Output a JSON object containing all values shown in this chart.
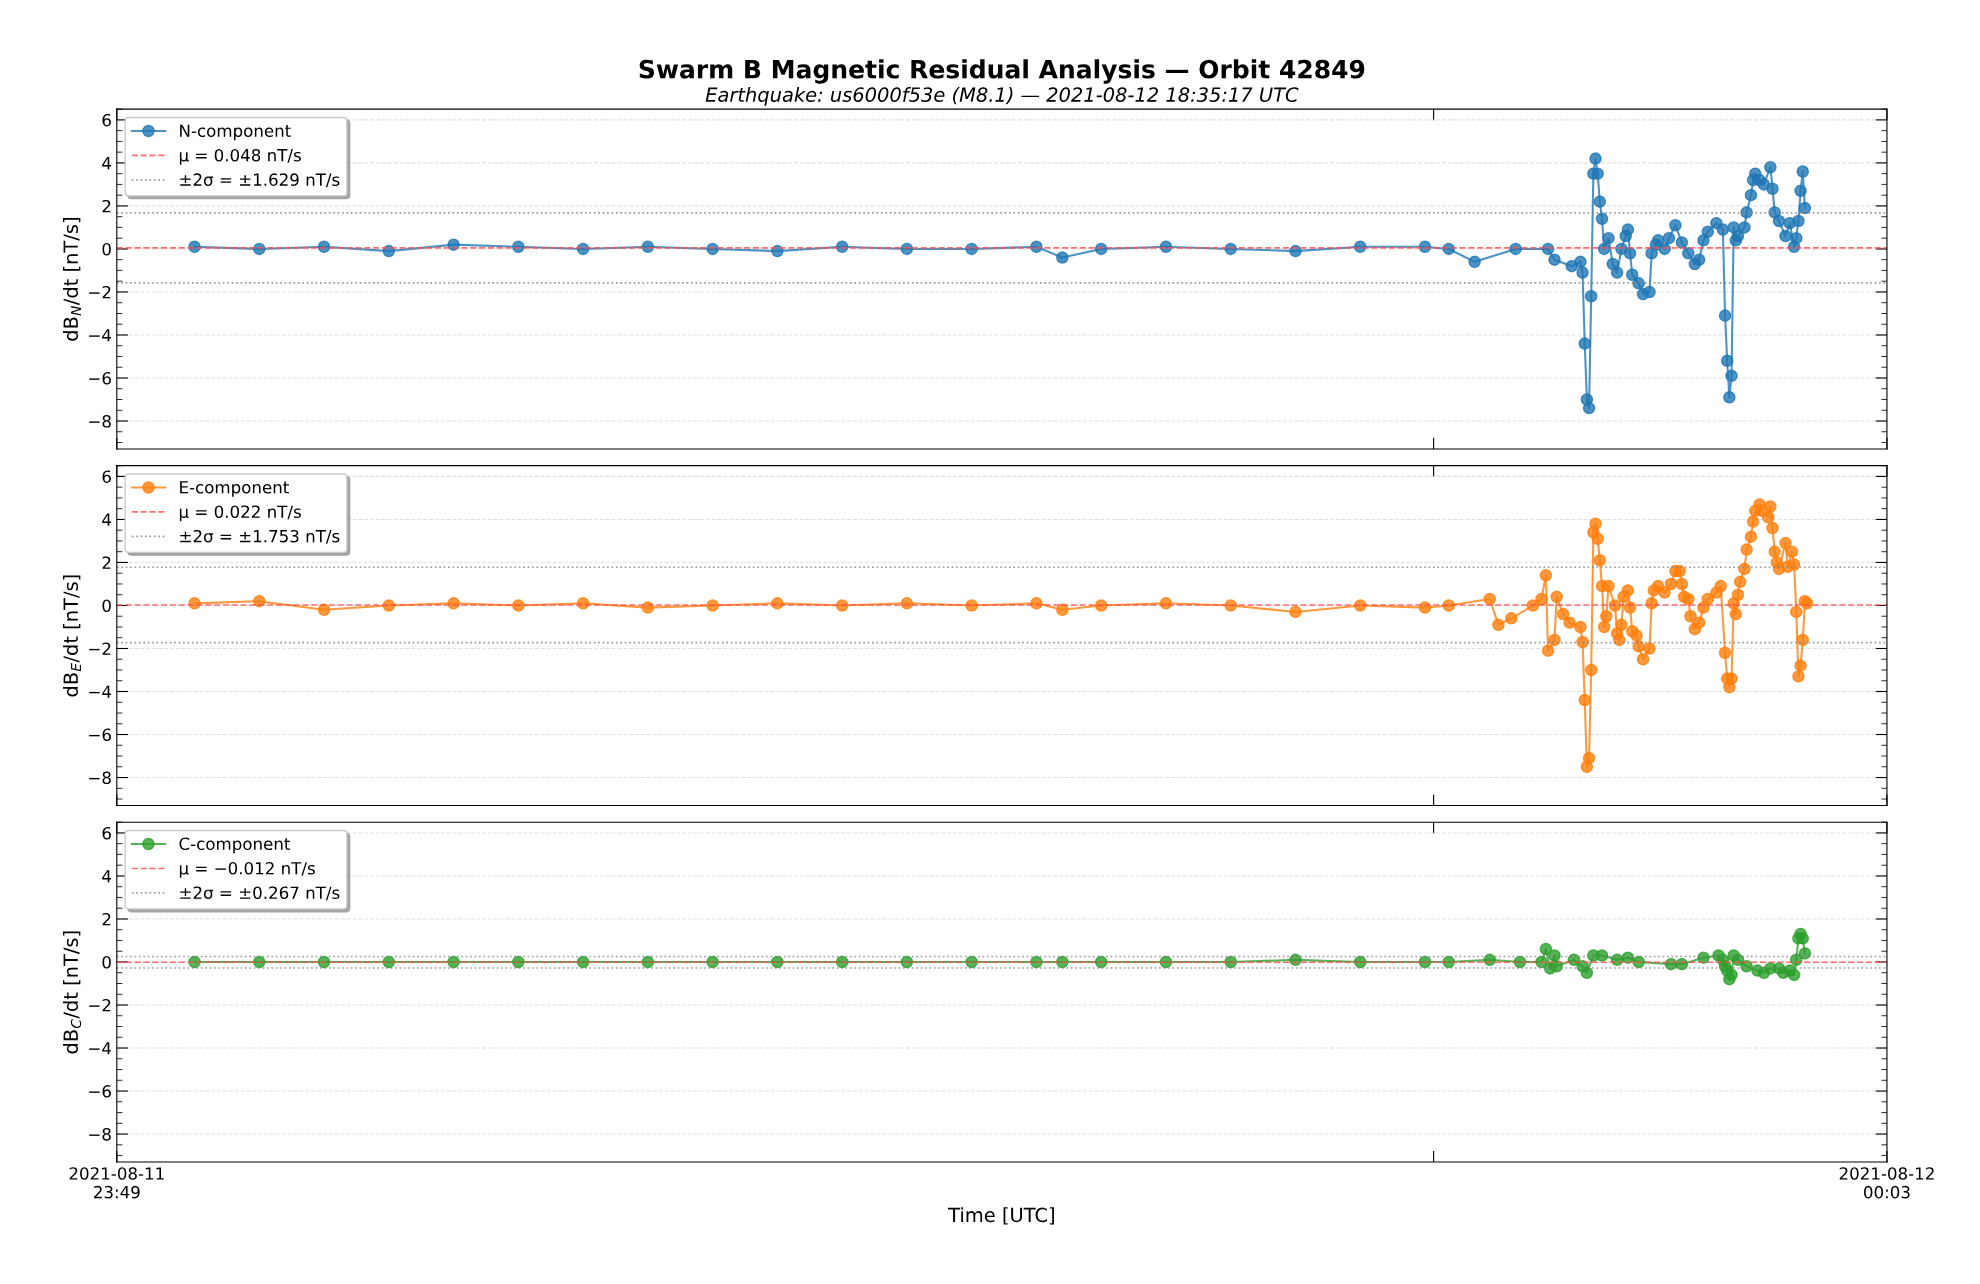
{
  "chart_data": [
    {
      "type": "line",
      "title": "Swarm B Magnetic Residual Analysis — Orbit 42849",
      "subtitle": "Earthquake: us6000f53e (M8.1) — 2021-08-12 18:35:17 UTC",
      "ylabel": "dB$_{N}$/dt [nT/s]",
      "xlim": [
        "2021-08-11T23:49:50",
        "2021-08-12T00:03:30"
      ],
      "xticks": [
        {
          "value": "2021-08-11T23:49:50",
          "label": null
        },
        {
          "value": "2021-08-12T00:00:00",
          "label": null
        },
        {
          "value": "2021-08-12T00:03:30",
          "label": null
        }
      ],
      "ylim": [
        -9.3,
        6.5
      ],
      "yticks": [
        -8,
        -6,
        -4,
        -2,
        0,
        2,
        4,
        6
      ],
      "grid": "y",
      "legend": "top left",
      "marker": "circle",
      "line_style": "solid",
      "tick_labels": "y",
      "ref_lines": [
        {
          "axis": "y",
          "value": 0.048,
          "label": "μ = 0.048 nT/s",
          "color": "#ff4d4d",
          "line_style": "dashed"
        },
        {
          "axis": "y",
          "value": 1.677,
          "label": "±2σ = ±1.629 nT/s",
          "color": "#808080",
          "line_style": "dotted"
        },
        {
          "axis": "y",
          "value": -1.581,
          "color": "#808080",
          "line_style": "dotted"
        }
      ],
      "series": [
        {
          "name": "N-component",
          "color": "#1f77b4",
          "x": [
            "2021-08-11T23:50:26",
            "2021-08-11T23:50:56",
            "2021-08-11T23:51:26",
            "2021-08-11T23:51:56",
            "2021-08-11T23:52:26",
            "2021-08-11T23:52:56",
            "2021-08-11T23:53:26",
            "2021-08-11T23:53:56",
            "2021-08-11T23:54:26",
            "2021-08-11T23:54:56",
            "2021-08-11T23:55:26",
            "2021-08-11T23:55:56",
            "2021-08-11T23:56:26",
            "2021-08-11T23:56:56",
            "2021-08-11T23:57:08",
            "2021-08-11T23:57:26",
            "2021-08-11T23:57:56",
            "2021-08-11T23:58:26",
            "2021-08-11T23:58:56",
            "2021-08-11T23:59:26",
            "2021-08-11T23:59:56",
            "2021-08-12T00:00:07",
            "2021-08-12T00:00:19",
            "2021-08-12T00:00:38",
            "2021-08-12T00:00:53",
            "2021-08-12T00:00:56",
            "2021-08-12T00:01:04",
            "2021-08-12T00:01:08",
            "2021-08-12T00:01:09",
            "2021-08-12T00:01:10",
            "2021-08-12T00:01:11",
            "2021-08-12T00:01:12",
            "2021-08-12T00:01:13",
            "2021-08-12T00:01:14",
            "2021-08-12T00:01:15",
            "2021-08-12T00:01:16",
            "2021-08-12T00:01:17",
            "2021-08-12T00:01:18",
            "2021-08-12T00:01:19",
            "2021-08-12T00:01:21",
            "2021-08-12T00:01:23",
            "2021-08-12T00:01:25",
            "2021-08-12T00:01:27",
            "2021-08-12T00:01:29",
            "2021-08-12T00:01:30",
            "2021-08-12T00:01:31",
            "2021-08-12T00:01:32",
            "2021-08-12T00:01:35",
            "2021-08-12T00:01:37",
            "2021-08-12T00:01:40",
            "2021-08-12T00:01:41",
            "2021-08-12T00:01:43",
            "2021-08-12T00:01:44",
            "2021-08-12T00:01:47",
            "2021-08-12T00:01:49",
            "2021-08-12T00:01:52",
            "2021-08-12T00:01:55",
            "2021-08-12T00:01:58",
            "2021-08-12T00:02:01",
            "2021-08-12T00:02:03",
            "2021-08-12T00:02:05",
            "2021-08-12T00:02:07",
            "2021-08-12T00:02:11",
            "2021-08-12T00:02:14",
            "2021-08-12T00:02:15",
            "2021-08-12T00:02:16",
            "2021-08-12T00:02:17",
            "2021-08-12T00:02:18",
            "2021-08-12T00:02:19",
            "2021-08-12T00:02:20",
            "2021-08-12T00:02:21",
            "2021-08-12T00:02:24",
            "2021-08-12T00:02:25",
            "2021-08-12T00:02:27",
            "2021-08-12T00:02:28",
            "2021-08-12T00:02:29",
            "2021-08-12T00:02:31",
            "2021-08-12T00:02:33",
            "2021-08-12T00:02:36",
            "2021-08-12T00:02:37",
            "2021-08-12T00:02:38",
            "2021-08-12T00:02:40",
            "2021-08-12T00:02:43",
            "2021-08-12T00:02:45",
            "2021-08-12T00:02:47",
            "2021-08-12T00:02:48",
            "2021-08-12T00:02:49",
            "2021-08-12T00:02:50",
            "2021-08-12T00:02:51",
            "2021-08-12T00:02:52"
          ],
          "values": [
            0.1,
            0,
            0.1,
            -0.1,
            0.2,
            0.1,
            0,
            0.1,
            0,
            -0.1,
            0.1,
            0,
            0,
            0.1,
            -0.4,
            0,
            0.1,
            0,
            -0.1,
            0.1,
            0.1,
            0,
            -0.6,
            0,
            0,
            -0.5,
            -0.8,
            -0.6,
            -1.1,
            -4.4,
            -7.0,
            -7.4,
            -2.2,
            3.5,
            4.2,
            3.5,
            2.2,
            1.4,
            0,
            0.5,
            -0.7,
            -1.1,
            0,
            0.6,
            0.9,
            -0.2,
            -1.2,
            -1.6,
            -2.1,
            -2.0,
            -0.2,
            0.2,
            0.4,
            0,
            0.5,
            1.1,
            0.3,
            -0.2,
            -0.7,
            -0.5,
            0.4,
            0.8,
            1.2,
            0.9,
            -3.1,
            -5.2,
            -6.9,
            -5.9,
            1.0,
            0.4,
            0.6,
            1.0,
            1.7,
            2.5,
            3.2,
            3.5,
            3.2,
            3.0,
            3.8,
            2.8,
            1.7,
            1.3,
            0.6,
            1.2,
            0.1,
            0.5,
            1.3,
            2.7,
            3.6,
            1.9
          ]
        }
      ]
    },
    {
      "type": "line",
      "ylabel": "dB$_{E}$/dt [nT/s]",
      "xlim": [
        "2021-08-11T23:49:50",
        "2021-08-12T00:03:30"
      ],
      "xticks": [
        {
          "value": "2021-08-11T23:49:50",
          "label": null
        },
        {
          "value": "2021-08-12T00:00:00",
          "label": null
        },
        {
          "value": "2021-08-12T00:03:30",
          "label": null
        }
      ],
      "ylim": [
        -9.3,
        6.5
      ],
      "yticks": [
        -8,
        -6,
        -4,
        -2,
        0,
        2,
        4,
        6
      ],
      "grid": "y",
      "legend": "top left",
      "marker": "circle",
      "line_style": "solid",
      "tick_labels": "y",
      "ref_lines": [
        {
          "axis": "y",
          "value": 0.022,
          "label": "μ = 0.022 nT/s",
          "color": "#ff4d4d",
          "line_style": "dashed"
        },
        {
          "axis": "y",
          "value": 1.775,
          "label": "±2σ = ±1.753 nT/s",
          "color": "#808080",
          "line_style": "dotted"
        },
        {
          "axis": "y",
          "value": -1.731,
          "color": "#808080",
          "line_style": "dotted"
        }
      ],
      "series": [
        {
          "name": "E-component",
          "color": "#ff7f0e",
          "x": [
            "2021-08-11T23:50:26",
            "2021-08-11T23:50:56",
            "2021-08-11T23:51:26",
            "2021-08-11T23:51:56",
            "2021-08-11T23:52:26",
            "2021-08-11T23:52:56",
            "2021-08-11T23:53:26",
            "2021-08-11T23:53:56",
            "2021-08-11T23:54:26",
            "2021-08-11T23:54:56",
            "2021-08-11T23:55:26",
            "2021-08-11T23:55:56",
            "2021-08-11T23:56:26",
            "2021-08-11T23:56:56",
            "2021-08-11T23:57:08",
            "2021-08-11T23:57:26",
            "2021-08-11T23:57:56",
            "2021-08-11T23:58:26",
            "2021-08-11T23:58:56",
            "2021-08-11T23:59:26",
            "2021-08-11T23:59:56",
            "2021-08-12T00:00:07",
            "2021-08-12T00:00:26",
            "2021-08-12T00:00:30",
            "2021-08-12T00:00:36",
            "2021-08-12T00:00:46",
            "2021-08-12T00:00:50",
            "2021-08-12T00:00:52",
            "2021-08-12T00:00:53",
            "2021-08-12T00:00:56",
            "2021-08-12T00:00:57",
            "2021-08-12T00:01:00",
            "2021-08-12T00:01:03",
            "2021-08-12T00:01:08",
            "2021-08-12T00:01:09",
            "2021-08-12T00:01:10",
            "2021-08-12T00:01:11",
            "2021-08-12T00:01:12",
            "2021-08-12T00:01:13",
            "2021-08-12T00:01:14",
            "2021-08-12T00:01:15",
            "2021-08-12T00:01:16",
            "2021-08-12T00:01:17",
            "2021-08-12T00:01:18",
            "2021-08-12T00:01:19",
            "2021-08-12T00:01:20",
            "2021-08-12T00:01:21",
            "2021-08-12T00:01:24",
            "2021-08-12T00:01:25",
            "2021-08-12T00:01:26",
            "2021-08-12T00:01:27",
            "2021-08-12T00:01:28",
            "2021-08-12T00:01:30",
            "2021-08-12T00:01:31",
            "2021-08-12T00:01:32",
            "2021-08-12T00:01:34",
            "2021-08-12T00:01:35",
            "2021-08-12T00:01:37",
            "2021-08-12T00:01:40",
            "2021-08-12T00:01:41",
            "2021-08-12T00:01:42",
            "2021-08-12T00:01:44",
            "2021-08-12T00:01:47",
            "2021-08-12T00:01:50",
            "2021-08-12T00:01:52",
            "2021-08-12T00:01:54",
            "2021-08-12T00:01:55",
            "2021-08-12T00:01:56",
            "2021-08-12T00:01:58",
            "2021-08-12T00:01:59",
            "2021-08-12T00:02:01",
            "2021-08-12T00:02:03",
            "2021-08-12T00:02:05",
            "2021-08-12T00:02:07",
            "2021-08-12T00:02:11",
            "2021-08-12T00:02:13",
            "2021-08-12T00:02:15",
            "2021-08-12T00:02:16",
            "2021-08-12T00:02:17",
            "2021-08-12T00:02:18",
            "2021-08-12T00:02:19",
            "2021-08-12T00:02:20",
            "2021-08-12T00:02:21",
            "2021-08-12T00:02:22",
            "2021-08-12T00:02:24",
            "2021-08-12T00:02:25",
            "2021-08-12T00:02:27",
            "2021-08-12T00:02:28",
            "2021-08-12T00:02:29",
            "2021-08-12T00:02:31",
            "2021-08-12T00:02:32",
            "2021-08-12T00:02:35",
            "2021-08-12T00:02:36",
            "2021-08-12T00:02:37",
            "2021-08-12T00:02:38",
            "2021-08-12T00:02:39",
            "2021-08-12T00:02:40",
            "2021-08-12T00:02:43",
            "2021-08-12T00:02:44",
            "2021-08-12T00:02:46",
            "2021-08-12T00:02:47",
            "2021-08-12T00:02:48",
            "2021-08-12T00:02:49",
            "2021-08-12T00:02:50",
            "2021-08-12T00:02:51",
            "2021-08-12T00:02:52",
            "2021-08-12T00:02:53"
          ],
          "values": [
            0.1,
            0.2,
            -0.2,
            0,
            0.1,
            0,
            0.1,
            -0.1,
            0,
            0.1,
            0,
            0.1,
            0,
            0.1,
            -0.2,
            0,
            0.1,
            0,
            -0.3,
            0,
            -0.1,
            0,
            0.3,
            -0.9,
            -0.6,
            0,
            0.3,
            1.4,
            -2.1,
            -1.6,
            0.4,
            -0.4,
            -0.8,
            -1.0,
            -1.7,
            -4.4,
            -7.5,
            -7.1,
            -3.0,
            3.4,
            3.8,
            3.1,
            2.1,
            0.9,
            -1.0,
            -0.5,
            0.9,
            0,
            -1.3,
            -1.6,
            -0.9,
            0.4,
            0.7,
            -0.1,
            -1.2,
            -1.4,
            -1.9,
            -2.5,
            -2.0,
            0.1,
            0.7,
            0.9,
            0.6,
            1.0,
            1.6,
            1.6,
            1.0,
            0.4,
            0.3,
            -0.5,
            -1.1,
            -0.8,
            -0.1,
            0.3,
            0.6,
            0.9,
            -2.2,
            -3.4,
            -3.8,
            -3.4,
            0.1,
            -0.4,
            0.5,
            1.1,
            1.7,
            2.6,
            3.2,
            3.9,
            4.4,
            4.7,
            4.4,
            4.1,
            4.6,
            3.6,
            2.5,
            2.0,
            1.7,
            2.9,
            1.8,
            2.5,
            1.9,
            -0.3,
            -3.3,
            -2.8,
            -1.6,
            0.2,
            0.1
          ]
        }
      ]
    },
    {
      "type": "line",
      "ylabel": "dB$_{C}$/dt [nT/s]",
      "xlabel": "Time [UTC]",
      "xlim": [
        "2021-08-11T23:49:50",
        "2021-08-12T00:03:30"
      ],
      "xticks": [
        {
          "value": "2021-08-11T23:49:50",
          "label": "2021-08-11\n23:49"
        },
        {
          "value": "2021-08-12T00:00:00",
          "label": null
        },
        {
          "value": "2021-08-12T00:03:30",
          "label": "2021-08-12\n00:03"
        }
      ],
      "ylim": [
        -9.3,
        6.5
      ],
      "yticks": [
        -8,
        -6,
        -4,
        -2,
        0,
        2,
        4,
        6
      ],
      "grid": "y",
      "legend": "top left",
      "marker": "circle",
      "line_style": "solid",
      "ref_lines": [
        {
          "axis": "y",
          "value": -0.012,
          "label": "μ = −0.012 nT/s",
          "color": "#ff4d4d",
          "line_style": "dashed"
        },
        {
          "axis": "y",
          "value": 0.255,
          "label": "±2σ = ±0.267 nT/s",
          "color": "#808080",
          "line_style": "dotted"
        },
        {
          "axis": "y",
          "value": -0.279,
          "color": "#808080",
          "line_style": "dotted"
        }
      ],
      "series": [
        {
          "name": "C-component",
          "color": "#2ca02c",
          "x": [
            "2021-08-11T23:50:26",
            "2021-08-11T23:50:56",
            "2021-08-11T23:51:26",
            "2021-08-11T23:51:56",
            "2021-08-11T23:52:26",
            "2021-08-11T23:52:56",
            "2021-08-11T23:53:26",
            "2021-08-11T23:53:56",
            "2021-08-11T23:54:26",
            "2021-08-11T23:54:56",
            "2021-08-11T23:55:26",
            "2021-08-11T23:55:56",
            "2021-08-11T23:56:26",
            "2021-08-11T23:56:56",
            "2021-08-11T23:57:08",
            "2021-08-11T23:57:26",
            "2021-08-11T23:57:56",
            "2021-08-11T23:58:26",
            "2021-08-11T23:58:56",
            "2021-08-11T23:59:26",
            "2021-08-11T23:59:56",
            "2021-08-12T00:00:07",
            "2021-08-12T00:00:26",
            "2021-08-12T00:00:40",
            "2021-08-12T00:00:50",
            "2021-08-12T00:00:52",
            "2021-08-12T00:00:54",
            "2021-08-12T00:00:56",
            "2021-08-12T00:00:57",
            "2021-08-12T00:01:05",
            "2021-08-12T00:01:09",
            "2021-08-12T00:01:11",
            "2021-08-12T00:01:14",
            "2021-08-12T00:01:18",
            "2021-08-12T00:01:25",
            "2021-08-12T00:01:30",
            "2021-08-12T00:01:35",
            "2021-08-12T00:01:50",
            "2021-08-12T00:01:55",
            "2021-08-12T00:02:05",
            "2021-08-12T00:02:12",
            "2021-08-12T00:02:14",
            "2021-08-12T00:02:15",
            "2021-08-12T00:02:16",
            "2021-08-12T00:02:17",
            "2021-08-12T00:02:18",
            "2021-08-12T00:02:19",
            "2021-08-12T00:02:21",
            "2021-08-12T00:02:25",
            "2021-08-12T00:02:30",
            "2021-08-12T00:02:33",
            "2021-08-12T00:02:36",
            "2021-08-12T00:02:40",
            "2021-08-12T00:02:42",
            "2021-08-12T00:02:45",
            "2021-08-12T00:02:47",
            "2021-08-12T00:02:48",
            "2021-08-12T00:02:49",
            "2021-08-12T00:02:50",
            "2021-08-12T00:02:51",
            "2021-08-12T00:02:52"
          ],
          "values": [
            0,
            0,
            0,
            0,
            0,
            0,
            0,
            0,
            0,
            0,
            0,
            0,
            0,
            0,
            0,
            0,
            0,
            0,
            0.1,
            0,
            0,
            0,
            0.1,
            0,
            0,
            0.6,
            -0.3,
            0.3,
            -0.2,
            0.1,
            -0.2,
            -0.5,
            0.3,
            0.3,
            0.1,
            0.2,
            0,
            -0.1,
            -0.1,
            0.2,
            0.3,
            0.1,
            -0.2,
            -0.4,
            -0.8,
            -0.6,
            0.3,
            0.1,
            -0.2,
            -0.4,
            -0.5,
            -0.3,
            -0.3,
            -0.5,
            -0.4,
            -0.6,
            0.1,
            1.1,
            1.3,
            1.1,
            0.4
          ]
        }
      ]
    }
  ]
}
